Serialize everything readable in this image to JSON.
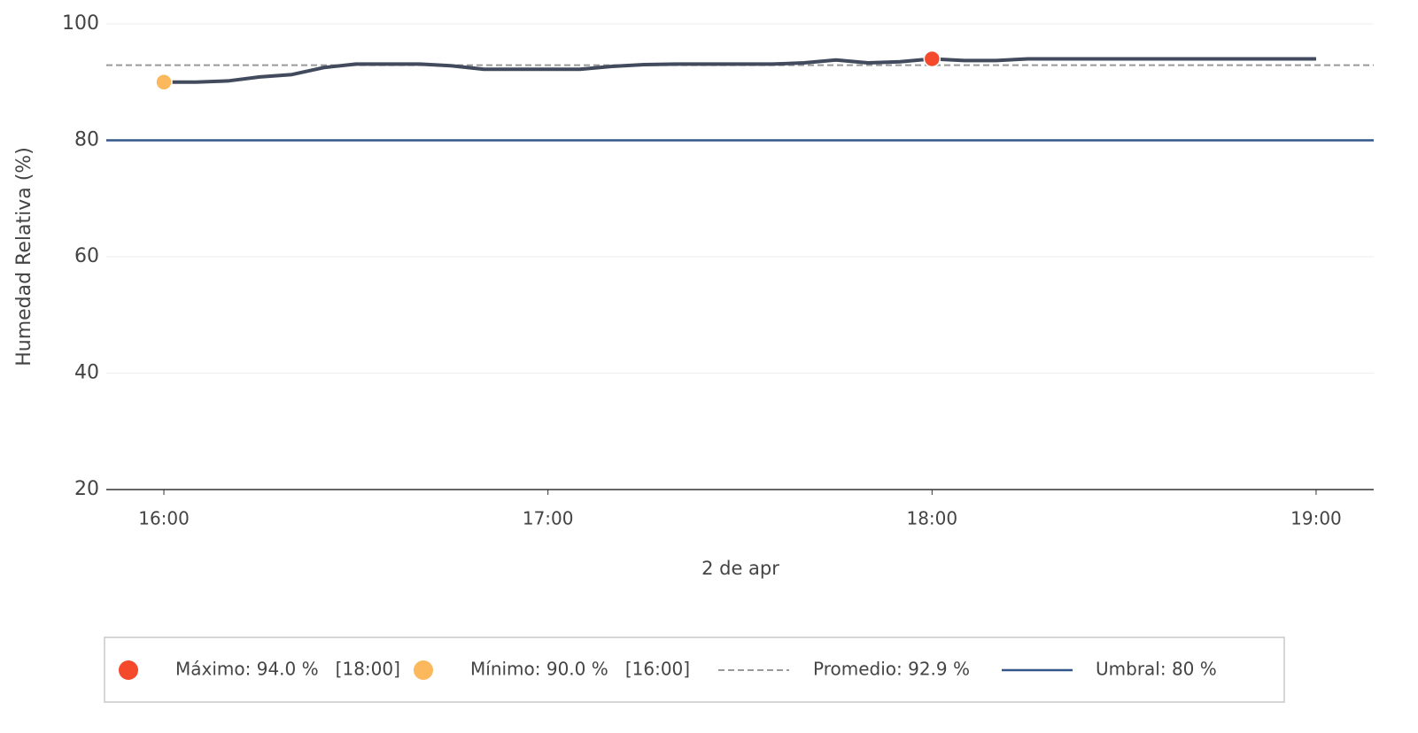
{
  "chart_data": {
    "type": "line",
    "y_label": "Humedad Relativa (%)",
    "x_label": "2 de apr",
    "color": "#424a5e",
    "x": [
      "16:00",
      "16:05",
      "16:10",
      "16:15",
      "16:20",
      "16:25",
      "16:30",
      "16:35",
      "16:40",
      "16:45",
      "16:50",
      "16:55",
      "17:00",
      "17:05",
      "17:10",
      "17:15",
      "17:20",
      "17:25",
      "17:30",
      "17:35",
      "17:40",
      "17:45",
      "17:50",
      "17:55",
      "18:00",
      "18:05",
      "18:10",
      "18:15",
      "18:20",
      "18:25",
      "18:30",
      "18:35",
      "18:40",
      "18:45",
      "18:50",
      "18:55",
      "19:00"
    ],
    "values": [
      90.0,
      90.0,
      90.2,
      90.9,
      91.3,
      92.5,
      93.1,
      93.1,
      93.1,
      92.8,
      92.2,
      92.2,
      92.2,
      92.2,
      92.7,
      93.0,
      93.1,
      93.1,
      93.1,
      93.1,
      93.3,
      93.8,
      93.3,
      93.5,
      94.0,
      93.7,
      93.7,
      94.0,
      94.0,
      94.0,
      94.0,
      94.0,
      94.0,
      94.0,
      94.0,
      94.0,
      94.0
    ],
    "xlim": [
      "15:51",
      "19:09"
    ],
    "xticks": [
      "16:00",
      "17:00",
      "18:00",
      "19:00"
    ],
    "ylim": [
      20,
      100
    ],
    "yticks": [
      20,
      40,
      60,
      80,
      100
    ],
    "grid": true,
    "maximum": {
      "x": "18:00",
      "value": 94.0,
      "label": "Máximo: 94.0 %   [18:00]",
      "color": "#f44a2b"
    },
    "minimum": {
      "x": "16:00",
      "value": 90.0,
      "label": "Mínimo: 90.0 %   [16:00]",
      "color": "#fbb85c"
    },
    "average": {
      "value": 92.9,
      "label": "Promedio: 92.9 %",
      "color": "#999999"
    },
    "threshold": {
      "value": 80,
      "label": "Umbral: 80 %",
      "color": "#33578a"
    }
  }
}
